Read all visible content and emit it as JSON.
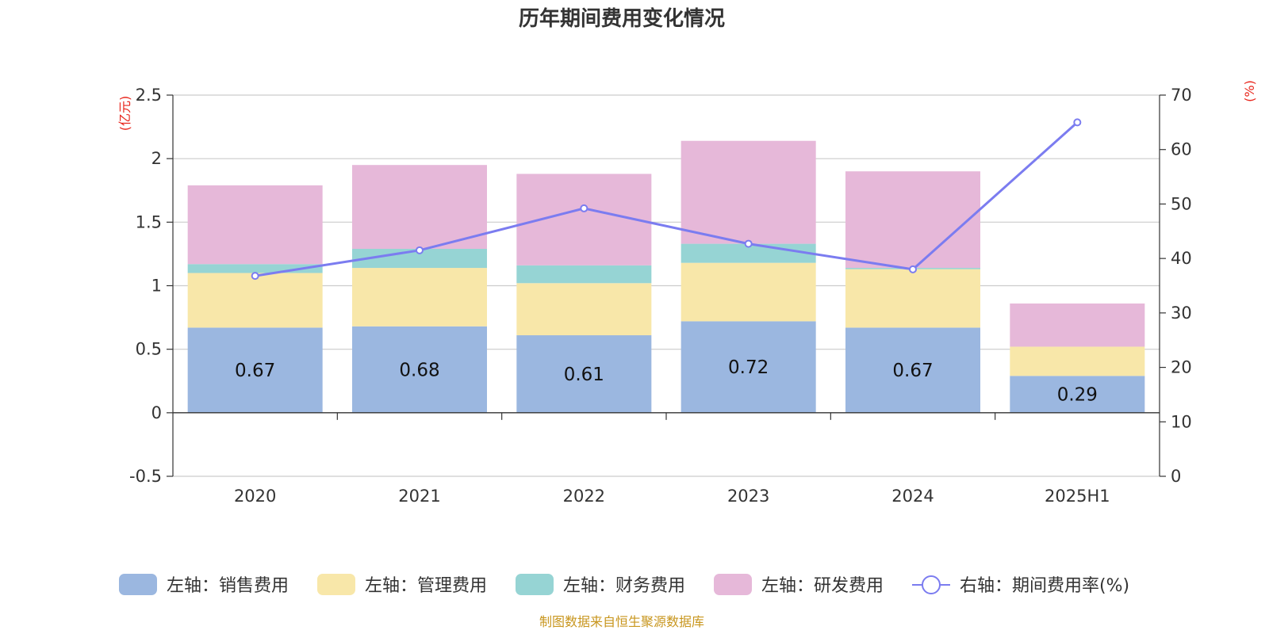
{
  "chart_data": {
    "type": "bar",
    "stacked": true,
    "title": "历年期间费用变化情况",
    "categories": [
      "2020",
      "2021",
      "2022",
      "2023",
      "2024",
      "2025H1"
    ],
    "left_axis": {
      "unit": "(亿元)",
      "ylim": [
        -0.5,
        2.5
      ],
      "ticks": [
        "2.5",
        "2",
        "1.5",
        "1",
        "0.5",
        "0",
        "-0.5"
      ]
    },
    "right_axis": {
      "unit": "(%)",
      "ylim": [
        0,
        70
      ],
      "ticks": [
        "70",
        "60",
        "50",
        "40",
        "30",
        "20",
        "10",
        "0"
      ]
    },
    "series": [
      {
        "name": "左轴：销售费用",
        "axis": "left",
        "kind": "bar",
        "color": "#9bb7e0",
        "values": [
          0.67,
          0.68,
          0.61,
          0.72,
          0.67,
          0.29
        ],
        "labels": [
          "0.67",
          "0.68",
          "0.61",
          "0.72",
          "0.67",
          "0.29"
        ]
      },
      {
        "name": "左轴：管理费用",
        "axis": "left",
        "kind": "bar",
        "color": "#f8e7a9",
        "values": [
          0.43,
          0.46,
          0.41,
          0.46,
          0.46,
          0.23
        ]
      },
      {
        "name": "左轴：财务费用",
        "axis": "left",
        "kind": "bar",
        "color": "#96d4d4",
        "values": [
          0.07,
          0.15,
          0.14,
          0.15,
          0.01,
          0.0
        ]
      },
      {
        "name": "左轴：研发费用",
        "axis": "left",
        "kind": "bar",
        "color": "#e6b8d9",
        "values": [
          0.62,
          0.66,
          0.72,
          0.81,
          0.76,
          0.34
        ]
      },
      {
        "name": "右轴：期间费用率(%)",
        "axis": "right",
        "kind": "line",
        "color": "#7b7cf0",
        "values": [
          36.8,
          41.5,
          49.2,
          42.7,
          38.0,
          65.0
        ]
      }
    ],
    "legend_position": "bottom",
    "grid": true,
    "source_note": "制图数据来自恒生聚源数据库"
  }
}
